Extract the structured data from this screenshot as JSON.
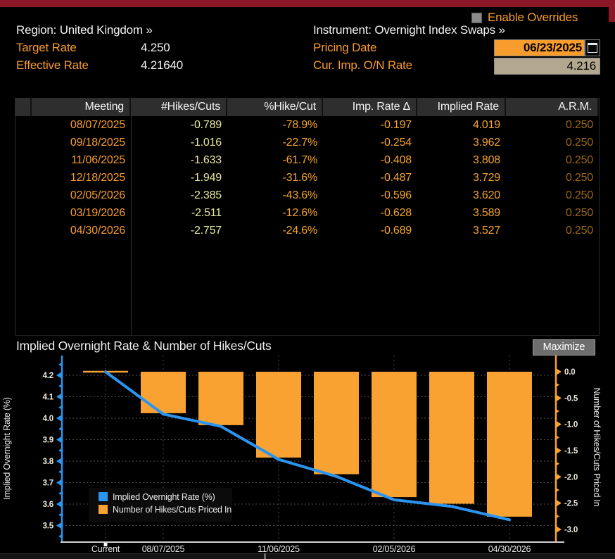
{
  "colors": {
    "topbar_red": "#8c1726",
    "amber": "#f79c2d",
    "pale_yellow": "#e9e79b",
    "dim_amber": "#9d671b",
    "line_blue": "#2b94f0",
    "bar_orange": "#f9a231",
    "date_field_bg": "#f79c2d",
    "rate_field_bg": "#b3a88f"
  },
  "header": {
    "enable_overrides_label": "Enable Overrides",
    "region_label": "Region: United Kingdom »",
    "instrument_label": "Instrument: Overnight Index Swaps »",
    "target_rate_label": "Target Rate",
    "target_rate_value": "4.250",
    "effective_rate_label": "Effective Rate",
    "effective_rate_value": "4.21640",
    "pricing_date_label": "Pricing Date",
    "pricing_date_value": "06/23/2025",
    "cur_imp_rate_label": "Cur. Imp. O/N Rate",
    "cur_imp_rate_value": "4.216"
  },
  "table": {
    "columns": [
      "",
      "Meeting",
      "#Hikes/Cuts",
      "%Hike/Cut",
      "Imp. Rate Δ",
      "Implied Rate",
      "A.R.M."
    ],
    "rows": [
      {
        "meeting": "08/07/2025",
        "hikes": "-0.789",
        "pct": "-78.9%",
        "delta": "-0.197",
        "implied": "4.019",
        "arm": "0.250"
      },
      {
        "meeting": "09/18/2025",
        "hikes": "-1.016",
        "pct": "-22.7%",
        "delta": "-0.254",
        "implied": "3.962",
        "arm": "0.250"
      },
      {
        "meeting": "11/06/2025",
        "hikes": "-1.633",
        "pct": "-61.7%",
        "delta": "-0.408",
        "implied": "3.808",
        "arm": "0.250"
      },
      {
        "meeting": "12/18/2025",
        "hikes": "-1.949",
        "pct": "-31.6%",
        "delta": "-0.487",
        "implied": "3.729",
        "arm": "0.250"
      },
      {
        "meeting": "02/05/2026",
        "hikes": "-2.385",
        "pct": "-43.6%",
        "delta": "-0.596",
        "implied": "3.620",
        "arm": "0.250"
      },
      {
        "meeting": "03/19/2026",
        "hikes": "-2.511",
        "pct": "-12.6%",
        "delta": "-0.628",
        "implied": "3.589",
        "arm": "0.250"
      },
      {
        "meeting": "04/30/2026",
        "hikes": "-2.757",
        "pct": "-24.6%",
        "delta": "-0.689",
        "implied": "3.527",
        "arm": "0.250"
      }
    ]
  },
  "chart": {
    "title": "Implied Overnight Rate & Number of Hikes/Cuts",
    "maximize_label": "Maximize"
  },
  "chart_data": {
    "type": "bar+line (dual axis)",
    "title": "Implied Overnight Rate & Number of Hikes/Cuts",
    "categories": [
      "Current",
      "08/07/2025",
      "09/18/2025",
      "11/06/2025",
      "12/18/2025",
      "02/05/2026",
      "03/19/2026",
      "04/30/2026"
    ],
    "x_tick_labels": [
      "Current",
      "08/07/2025",
      "11/06/2025",
      "02/05/2026",
      "04/30/2026"
    ],
    "x_tick_slots": [
      0,
      1,
      3,
      5,
      7
    ],
    "series": [
      {
        "name": "Implied Overnight Rate (%)",
        "type": "line",
        "axis": "left",
        "color": "#2b94f0",
        "values": [
          4.216,
          4.019,
          3.962,
          3.808,
          3.729,
          3.62,
          3.589,
          3.527
        ]
      },
      {
        "name": "Number of Hikes/Cuts Priced In",
        "type": "bar",
        "axis": "right",
        "color": "#f9a231",
        "values": [
          0,
          -0.789,
          -1.016,
          -1.633,
          -1.949,
          -2.385,
          -2.511,
          -2.757
        ]
      }
    ],
    "left_axis": {
      "title": "Implied Overnight Rate (%)",
      "color": "#2b94f0",
      "ticks": [
        "4.2",
        "4.1",
        "4.0",
        "3.9",
        "3.8",
        "3.7",
        "3.6",
        "3.5"
      ],
      "range": [
        3.45,
        4.27
      ]
    },
    "right_axis": {
      "title": "Number of Hikes/Cuts Priced In",
      "color": "#f9a231",
      "ticks": [
        "0.0",
        "-0.5",
        "-1.0",
        "-1.5",
        "-2.0",
        "-2.5",
        "-3.0"
      ],
      "range": [
        -3.25,
        0.25
      ]
    },
    "legend": {
      "position": "bottom-left",
      "entries": [
        "Implied Overnight Rate (%)",
        "Number of Hikes/Cuts Priced In"
      ]
    },
    "grid": true
  }
}
